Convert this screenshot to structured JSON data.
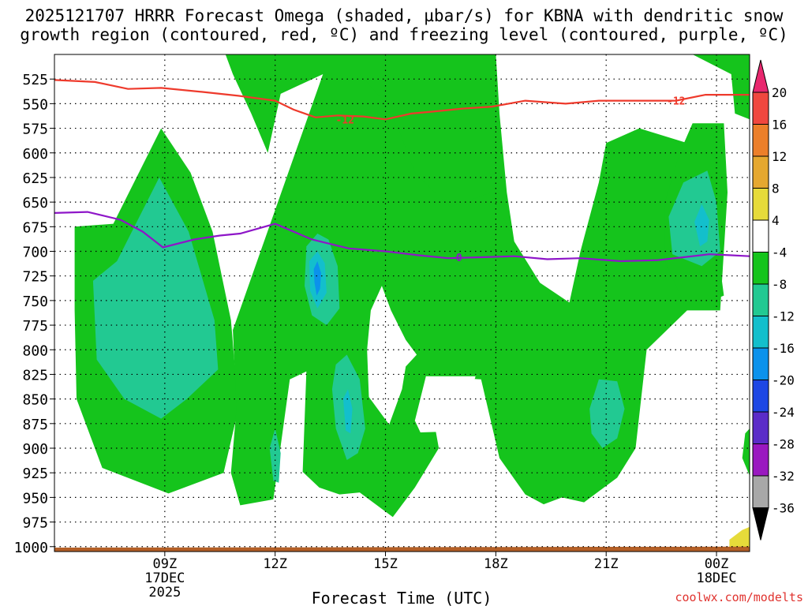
{
  "chart_data": {
    "type": "heatmap",
    "title_line1": "2025121707 HRRR Forecast Omega (shaded, µbar/s) for KBNA with dendritic snow",
    "title_line2": "growth region (contoured, red, ºC) and freezing level (contoured, purple, ºC)",
    "xlabel": "Forecast Time (UTC)",
    "x_range_hours": [
      6.0,
      24.9
    ],
    "x_ticks": [
      {
        "hour": 9,
        "label": "09Z",
        "sub1": "17DEC",
        "sub2": "2025"
      },
      {
        "hour": 12,
        "label": "12Z",
        "sub1": "",
        "sub2": ""
      },
      {
        "hour": 15,
        "label": "15Z",
        "sub1": "",
        "sub2": ""
      },
      {
        "hour": 18,
        "label": "18Z",
        "sub1": "",
        "sub2": ""
      },
      {
        "hour": 21,
        "label": "21Z",
        "sub1": "",
        "sub2": ""
      },
      {
        "hour": 24,
        "label": "00Z",
        "sub1": "18DEC",
        "sub2": ""
      }
    ],
    "y_range_hpa": [
      500,
      1005
    ],
    "y_ticks": [
      525,
      550,
      575,
      600,
      625,
      650,
      675,
      700,
      725,
      750,
      775,
      800,
      825,
      850,
      875,
      900,
      925,
      950,
      975,
      1000
    ],
    "colorbar": {
      "labels": [
        "20",
        "16",
        "12",
        "8",
        "4",
        "-4",
        "-8",
        "-12",
        "-16",
        "-20",
        "-24",
        "-28",
        "-32",
        "-36"
      ],
      "colors": [
        "#e8276e",
        "#f0473f",
        "#ec7f2a",
        "#e5a830",
        "#e6db3a",
        "#ffffff",
        "#15c41c",
        "#22c992",
        "#13bfcc",
        "#0b92ec",
        "#1d47e4",
        "#5b2cc8",
        "#9a18c0",
        "#a8a8a8",
        "#000000"
      ]
    },
    "shaded_regions": [
      {
        "name": "green-omega-left",
        "color": "#15c41c",
        "points": [
          [
            6.55,
            675
          ],
          [
            7.6,
            672
          ],
          [
            8.9,
            575
          ],
          [
            9.7,
            620
          ],
          [
            10.3,
            680
          ],
          [
            10.8,
            770
          ],
          [
            11.0,
            860
          ],
          [
            10.6,
            925
          ],
          [
            9.1,
            946
          ],
          [
            7.3,
            920
          ],
          [
            6.6,
            850
          ],
          [
            6.55,
            760
          ]
        ]
      },
      {
        "name": "teal-omega-left",
        "color": "#22c992",
        "points": [
          [
            7.05,
            730
          ],
          [
            7.7,
            710
          ],
          [
            8.85,
            625
          ],
          [
            9.65,
            680
          ],
          [
            10.35,
            770
          ],
          [
            10.45,
            820
          ],
          [
            9.6,
            850
          ],
          [
            8.9,
            870
          ],
          [
            7.9,
            850
          ],
          [
            7.15,
            810
          ]
        ]
      },
      {
        "name": "green-omega-upper-center",
        "color": "#15c41c",
        "points": [
          [
            10.65,
            500
          ],
          [
            18.0,
            500
          ],
          [
            18.1,
            560
          ],
          [
            18.3,
            640
          ],
          [
            18.5,
            690
          ],
          [
            17.8,
            730
          ],
          [
            16.4,
            725
          ],
          [
            15.5,
            740
          ],
          [
            14.65,
            750
          ],
          [
            14.35,
            800
          ],
          [
            14.5,
            850
          ],
          [
            14.0,
            870
          ],
          [
            13.05,
            780
          ],
          [
            12.55,
            760
          ],
          [
            12.65,
            700
          ],
          [
            13.15,
            660
          ],
          [
            13.7,
            655
          ],
          [
            14.35,
            650
          ],
          [
            14.45,
            580
          ],
          [
            13.95,
            540
          ],
          [
            13.3,
            520
          ],
          [
            12.15,
            540
          ],
          [
            11.8,
            600
          ],
          [
            11.35,
            560
          ],
          [
            10.85,
            520
          ]
        ]
      },
      {
        "name": "green-omega-center",
        "color": "#15c41c",
        "points": [
          [
            13.3,
            520
          ],
          [
            14.3,
            520
          ],
          [
            14.9,
            545
          ],
          [
            15.35,
            575
          ],
          [
            15.8,
            620
          ],
          [
            16.75,
            655
          ],
          [
            17.9,
            640
          ],
          [
            18.5,
            690
          ],
          [
            19.2,
            732
          ],
          [
            20.0,
            752
          ],
          [
            20.3,
            700
          ],
          [
            20.8,
            630
          ],
          [
            21.0,
            590
          ],
          [
            21.9,
            575
          ],
          [
            23.2,
            590
          ],
          [
            23.9,
            660
          ],
          [
            24.2,
            745
          ],
          [
            23.2,
            760
          ],
          [
            22.1,
            800
          ],
          [
            21.8,
            900
          ],
          [
            21.3,
            930
          ],
          [
            20.4,
            955
          ],
          [
            19.8,
            950
          ],
          [
            19.3,
            957
          ],
          [
            18.8,
            947
          ],
          [
            18.1,
            910
          ],
          [
            17.6,
            830
          ],
          [
            16.1,
            827
          ],
          [
            16.45,
            900
          ],
          [
            15.8,
            940
          ],
          [
            15.2,
            970
          ],
          [
            14.3,
            945
          ],
          [
            13.75,
            947
          ],
          [
            13.2,
            940
          ],
          [
            12.75,
            924
          ],
          [
            12.85,
            822
          ],
          [
            12.4,
            830
          ],
          [
            11.95,
            952
          ],
          [
            11.05,
            958
          ],
          [
            10.8,
            925
          ],
          [
            10.95,
            860
          ],
          [
            10.85,
            780
          ]
        ]
      },
      {
        "name": "white-gap-center",
        "color": "#ffffff",
        "points": [
          [
            14.9,
            735
          ],
          [
            15.15,
            760
          ],
          [
            15.55,
            790
          ],
          [
            15.85,
            805
          ],
          [
            15.55,
            817
          ],
          [
            15.45,
            840
          ],
          [
            15.1,
            876
          ],
          [
            14.55,
            848
          ],
          [
            14.5,
            800
          ],
          [
            14.6,
            760
          ]
        ]
      },
      {
        "name": "white-gap-center-2",
        "color": "#ffffff",
        "points": [
          [
            16.1,
            827
          ],
          [
            17.45,
            827
          ],
          [
            17.1,
            870
          ],
          [
            16.8,
            883
          ],
          [
            15.95,
            884
          ],
          [
            15.8,
            872
          ]
        ]
      },
      {
        "name": "teal-omega-center",
        "color": "#22c992",
        "points": [
          [
            12.85,
            695
          ],
          [
            13.15,
            682
          ],
          [
            13.45,
            688
          ],
          [
            13.7,
            715
          ],
          [
            13.75,
            758
          ],
          [
            13.4,
            775
          ],
          [
            13.0,
            765
          ],
          [
            12.8,
            735
          ]
        ]
      },
      {
        "name": "cyan-omega-center",
        "color": "#13bfcc",
        "points": [
          [
            12.93,
            710
          ],
          [
            13.15,
            700
          ],
          [
            13.35,
            712
          ],
          [
            13.4,
            742
          ],
          [
            13.15,
            758
          ],
          [
            12.95,
            740
          ]
        ]
      },
      {
        "name": "blue-omega-center",
        "color": "#0b92ec",
        "points": [
          [
            13.05,
            718
          ],
          [
            13.15,
            710
          ],
          [
            13.25,
            722
          ],
          [
            13.22,
            738
          ],
          [
            13.13,
            745
          ],
          [
            13.07,
            732
          ]
        ]
      },
      {
        "name": "teal-omega-lower",
        "color": "#22c992",
        "points": [
          [
            13.65,
            815
          ],
          [
            13.95,
            805
          ],
          [
            14.3,
            830
          ],
          [
            14.45,
            880
          ],
          [
            14.25,
            905
          ],
          [
            13.95,
            912
          ],
          [
            13.65,
            880
          ],
          [
            13.55,
            840
          ]
        ]
      },
      {
        "name": "cyan-omega-lower",
        "color": "#13bfcc",
        "points": [
          [
            13.85,
            850
          ],
          [
            13.98,
            840
          ],
          [
            14.1,
            860
          ],
          [
            14.05,
            885
          ],
          [
            13.92,
            882
          ]
        ]
      },
      {
        "name": "teal-omega-small",
        "color": "#22c992",
        "points": [
          [
            11.85,
            900
          ],
          [
            12.0,
            880
          ],
          [
            12.15,
            905
          ],
          [
            12.1,
            935
          ],
          [
            11.95,
            933
          ]
        ]
      },
      {
        "name": "teal-omega-right-low",
        "color": "#22c992",
        "points": [
          [
            20.55,
            860
          ],
          [
            20.8,
            830
          ],
          [
            21.3,
            832
          ],
          [
            21.5,
            860
          ],
          [
            21.3,
            890
          ],
          [
            20.9,
            900
          ],
          [
            20.6,
            885
          ]
        ]
      },
      {
        "name": "green-omega-right",
        "color": "#15c41c",
        "points": [
          [
            22.6,
            650
          ],
          [
            23.0,
            600
          ],
          [
            23.35,
            570
          ],
          [
            24.2,
            570
          ],
          [
            24.3,
            640
          ],
          [
            24.1,
            760
          ],
          [
            23.2,
            760
          ],
          [
            22.6,
            710
          ]
        ]
      },
      {
        "name": "teal-omega-right",
        "color": "#22c992",
        "points": [
          [
            22.7,
            665
          ],
          [
            23.1,
            630
          ],
          [
            23.75,
            618
          ],
          [
            24.0,
            650
          ],
          [
            24.1,
            700
          ],
          [
            23.6,
            715
          ],
          [
            22.8,
            703
          ]
        ]
      },
      {
        "name": "cyan-omega-right",
        "color": "#13bfcc",
        "points": [
          [
            23.4,
            670
          ],
          [
            23.6,
            652
          ],
          [
            23.8,
            668
          ],
          [
            23.75,
            690
          ],
          [
            23.55,
            695
          ]
        ]
      },
      {
        "name": "green-omega-top-right",
        "color": "#15c41c",
        "points": [
          [
            23.35,
            500
          ],
          [
            24.9,
            500
          ],
          [
            24.9,
            566
          ],
          [
            24.5,
            560
          ],
          [
            24.4,
            520
          ]
        ]
      },
      {
        "name": "green-omega-bottom-right",
        "color": "#15c41c",
        "points": [
          [
            24.9,
            880
          ],
          [
            24.9,
            928
          ],
          [
            24.7,
            910
          ],
          [
            24.78,
            885
          ]
        ]
      },
      {
        "name": "yellow-omega-bottom-right",
        "color": "#e6db3a",
        "points": [
          [
            24.35,
            993
          ],
          [
            24.7,
            983
          ],
          [
            24.9,
            980
          ],
          [
            24.9,
            1005
          ],
          [
            24.35,
            1005
          ]
        ]
      },
      {
        "name": "ground-bar",
        "color": "#b35f26",
        "points": [
          [
            6.0,
            1001
          ],
          [
            24.9,
            1000
          ],
          [
            24.9,
            1005
          ],
          [
            6.0,
            1005
          ]
        ]
      }
    ],
    "contours": [
      {
        "name": "dgz-minus12-contour",
        "color": "#ee3a2c",
        "label": "-12",
        "label_at": [
          [
            13.9,
            566
          ],
          [
            22.9,
            547
          ]
        ],
        "points": [
          [
            6.0,
            526
          ],
          [
            7.1,
            528
          ],
          [
            8.0,
            535
          ],
          [
            8.9,
            534
          ],
          [
            10.0,
            538
          ],
          [
            11.0,
            542
          ],
          [
            12.0,
            547
          ],
          [
            12.5,
            556
          ],
          [
            13.1,
            564
          ],
          [
            13.7,
            562
          ],
          [
            14.4,
            563
          ],
          [
            15.0,
            566
          ],
          [
            15.7,
            560
          ],
          [
            16.3,
            558
          ],
          [
            17.1,
            555
          ],
          [
            17.9,
            553
          ],
          [
            18.8,
            547
          ],
          [
            19.9,
            550
          ],
          [
            20.8,
            547
          ],
          [
            21.9,
            547
          ],
          [
            22.9,
            547
          ],
          [
            23.7,
            541
          ],
          [
            24.9,
            541
          ]
        ]
      },
      {
        "name": "freezing-level-0-contour",
        "color": "#8e16c8",
        "label": "0",
        "label_at": [
          [
            17.0,
            706
          ]
        ],
        "points": [
          [
            6.0,
            661
          ],
          [
            6.9,
            660
          ],
          [
            7.8,
            668
          ],
          [
            8.4,
            680
          ],
          [
            8.95,
            696
          ],
          [
            9.8,
            688
          ],
          [
            10.5,
            684
          ],
          [
            11.05,
            682
          ],
          [
            12.0,
            672
          ],
          [
            13.0,
            688
          ],
          [
            14.0,
            697
          ],
          [
            15.0,
            700
          ],
          [
            15.9,
            704
          ],
          [
            16.7,
            707
          ],
          [
            17.6,
            706
          ],
          [
            18.5,
            705
          ],
          [
            19.4,
            708
          ],
          [
            20.3,
            707
          ],
          [
            21.4,
            710
          ],
          [
            22.4,
            709
          ],
          [
            23.1,
            706
          ],
          [
            23.8,
            703
          ],
          [
            24.4,
            704
          ],
          [
            24.9,
            705
          ]
        ]
      }
    ]
  },
  "watermark": "coolwx.com/modelts"
}
